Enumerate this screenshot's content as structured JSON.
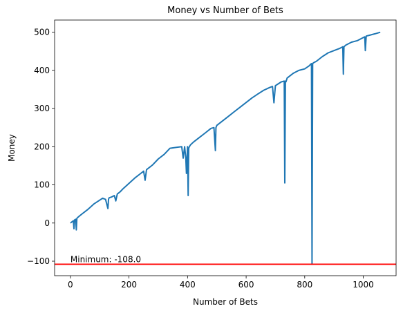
{
  "chart_data": {
    "type": "line",
    "title": "Money vs Number of Bets",
    "xlabel": "Number of Bets",
    "ylabel": "Money",
    "xlim": [
      -54,
      1112
    ],
    "ylim": [
      -138,
      532
    ],
    "xticks": [
      0,
      200,
      400,
      600,
      800,
      1000
    ],
    "yticks": [
      -100,
      0,
      100,
      200,
      300,
      400,
      500
    ],
    "grid": false,
    "legend": "none",
    "series": [
      {
        "color": "#1f77b4",
        "x": [
          0,
          10,
          12,
          14,
          18,
          20,
          22,
          24,
          30,
          40,
          60,
          80,
          100,
          110,
          120,
          128,
          130,
          132,
          140,
          150,
          155,
          160,
          170,
          180,
          200,
          220,
          240,
          250,
          255,
          260,
          270,
          280,
          300,
          320,
          340,
          360,
          380,
          385,
          390,
          394,
          396,
          400,
          402,
          404,
          406,
          410,
          420,
          440,
          460,
          480,
          490,
          495,
          497,
          500,
          520,
          540,
          560,
          580,
          600,
          620,
          640,
          660,
          680,
          690,
          695,
          700,
          720,
          730,
          732,
          734,
          736,
          740,
          760,
          780,
          800,
          815,
          820,
          823,
          825,
          827,
          830,
          840,
          860,
          880,
          900,
          920,
          930,
          932,
          934,
          940,
          960,
          980,
          1000,
          1005,
          1007,
          1010,
          1020,
          1040,
          1058
        ],
        "y": [
          0,
          6,
          -15,
          8,
          10,
          -18,
          12,
          14,
          18,
          24,
          36,
          50,
          60,
          65,
          62,
          38,
          62,
          66,
          68,
          72,
          58,
          76,
          82,
          90,
          104,
          118,
          130,
          136,
          112,
          140,
          146,
          152,
          168,
          180,
          196,
          198,
          200,
          170,
          200,
          170,
          130,
          200,
          72,
          196,
          200,
          205,
          212,
          224,
          236,
          248,
          250,
          190,
          250,
          256,
          268,
          280,
          292,
          304,
          316,
          328,
          338,
          348,
          355,
          358,
          315,
          360,
          370,
          372,
          105,
          372,
          370,
          380,
          392,
          400,
          404,
          412,
          416,
          418,
          -108,
          418,
          420,
          424,
          436,
          446,
          452,
          458,
          462,
          390,
          462,
          466,
          474,
          478,
          486,
          488,
          452,
          490,
          492,
          496,
          500
        ]
      }
    ],
    "hline": {
      "y": -108.0,
      "color": "#ff0000"
    },
    "annotation": {
      "text": "Minimum: -108.0",
      "x": 0,
      "y": -103
    }
  }
}
